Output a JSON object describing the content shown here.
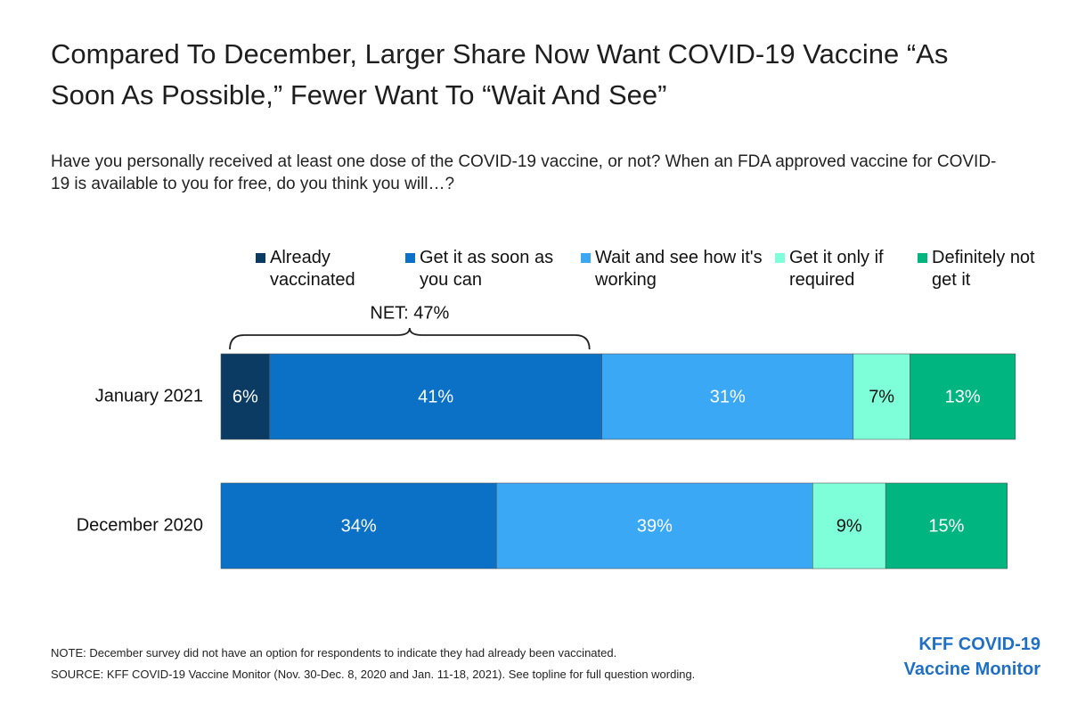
{
  "chart_data": {
    "type": "stacked-bar-horizontal",
    "title": "Compared To December, Larger Share Now Want COVID-19 Vaccine “As Soon As Possible,” Fewer Want To “Wait And See”",
    "subtitle": "Have you personally received at least one dose of the COVID-19 vaccine, or not? When an FDA approved vaccine for COVID-19 is available to you for free, do you think you will…?",
    "categories": [
      "January 2021",
      "December 2020"
    ],
    "series": [
      {
        "name": "Already vaccinated",
        "color": "#0b3a62",
        "values": [
          6,
          null
        ],
        "value_labels": [
          "6%",
          null
        ]
      },
      {
        "name": "Get it as soon as you can",
        "color": "#0a71c6",
        "values": [
          41,
          34
        ],
        "value_labels": [
          "41%",
          "34%"
        ]
      },
      {
        "name": "Wait and see how it's working",
        "color": "#3aa8f5",
        "values": [
          31,
          39
        ],
        "value_labels": [
          "31%",
          "39%"
        ]
      },
      {
        "name": "Get it only if required",
        "color": "#7fffd9",
        "values": [
          7,
          9
        ],
        "value_labels": [
          "7%",
          "9%"
        ]
      },
      {
        "name": "Definitely not get it",
        "color": "#00b57f",
        "values": [
          13,
          15
        ],
        "value_labels": [
          "13%",
          "15%"
        ]
      }
    ],
    "annotations": [
      {
        "text": "NET: 47%"
      }
    ],
    "note": "NOTE: December survey did not have an option for respondents to indicate they had already been vaccinated.",
    "source": "SOURCE: KFF COVID-19 Vaccine Monitor (Nov. 30-Dec. 8, 2020 and Jan. 11-18, 2021). See topline for full question wording.",
    "logo": [
      "KFF COVID-19",
      "Vaccine Monitor"
    ]
  }
}
